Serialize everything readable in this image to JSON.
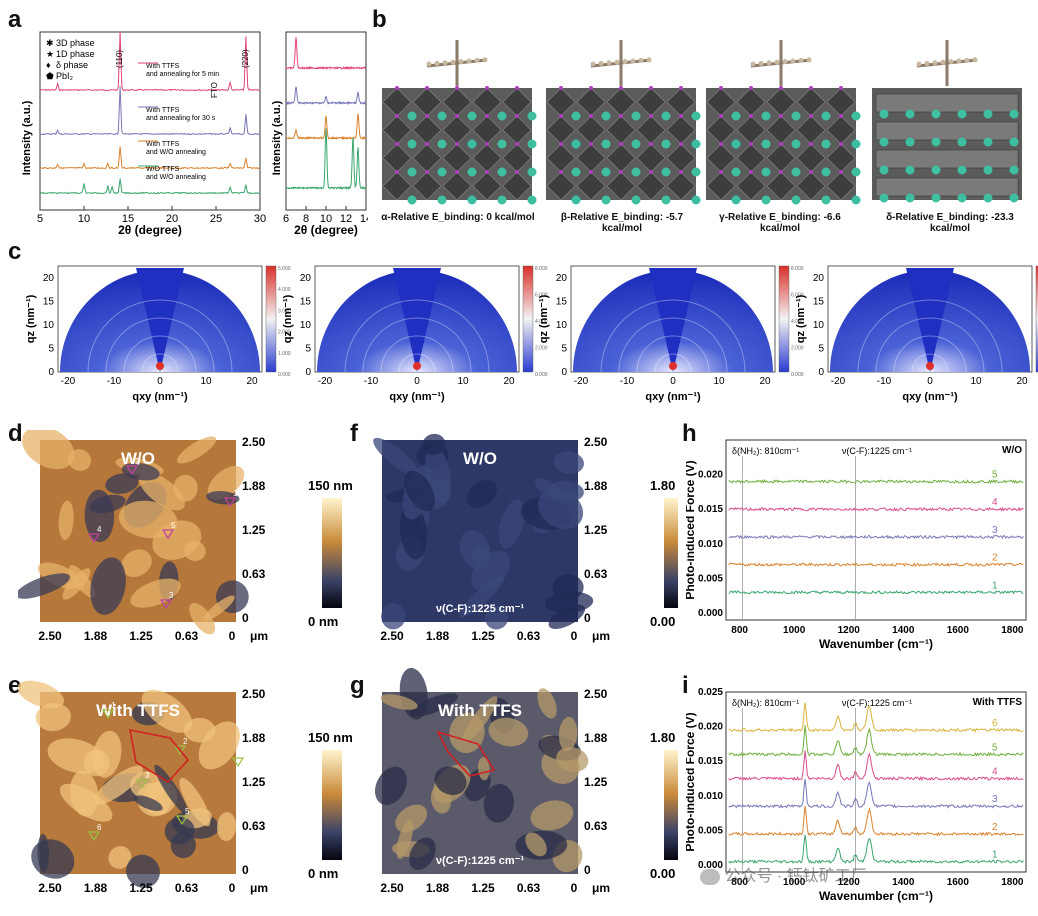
{
  "panels": {
    "a": "a",
    "b": "b",
    "c": "c",
    "d": "d",
    "e": "e",
    "f": "f",
    "g": "g",
    "h": "h",
    "i": "i"
  },
  "xrd": {
    "ylabel": "Intensity (a.u.)",
    "xlabel": "2θ (degree)",
    "legend": [
      "3D phase",
      "1D phase",
      "δ phase",
      "PbI₂"
    ],
    "legend_markers": [
      "✱",
      "★",
      "♦",
      "⬟"
    ],
    "peak_110": "(110)",
    "peak_220": "(220)",
    "fto": "FTO",
    "traces": [
      {
        "label": "With TTFS\nand annealing for 5 min",
        "color": "#e0457a"
      },
      {
        "label": "With TTFS\nand annealing for 30 s",
        "color": "#7777b8"
      },
      {
        "label": "With TTFS\nand W/O annealing",
        "color": "#d9822b"
      },
      {
        "label": "W/O TTFS\nand W/O annealing",
        "color": "#3aa66d"
      }
    ],
    "ticks_main": [
      "5",
      "10",
      "15",
      "20",
      "25",
      "30"
    ],
    "ticks_zoom": [
      "6",
      "8",
      "10",
      "12",
      "14"
    ]
  },
  "structures": {
    "captions": [
      "α-Relative E_binding: 0 kcal/mol",
      "β-Relative E_binding: -5.7 kcal/mol",
      "γ-Relative E_binding: -6.6 kcal/mol",
      "δ-Relative E_binding: -23.3 kcal/mol"
    ]
  },
  "giwaxs": {
    "xlabel": "qxy (nm⁻¹)",
    "ylabel": "qz (nm⁻¹)",
    "xticks": [
      "-20",
      "-10",
      "0",
      "10",
      "20"
    ],
    "yticks": [
      "0",
      "5",
      "10",
      "15",
      "20"
    ],
    "colorbar_labels": [
      "5.000",
      "4.000",
      "3.000",
      "2.000",
      "1.000",
      "0.000"
    ],
    "colorbar_labels_alt": [
      "8.000",
      "6.000",
      "4.000",
      "2.000",
      "0.000"
    ],
    "maps": [
      "1",
      "2",
      "3",
      "4"
    ]
  },
  "afm": {
    "d": {
      "title": "W/O",
      "cb_top": "150 nm",
      "cb_bottom": "0 nm"
    },
    "e": {
      "title": "With TTFS",
      "cb_top": "150 nm",
      "cb_bottom": "0 nm"
    },
    "f": {
      "title": "W/O",
      "cb_top": "1.80 mV",
      "cb_bottom": "0.00 mV",
      "note": "ν(C-F):1225 cm⁻¹"
    },
    "g": {
      "title": "With TTFS",
      "cb_top": "1.80 mV",
      "cb_bottom": "0.00 mV",
      "note": "ν(C-F):1225 cm⁻¹"
    },
    "yticks": [
      "2.50",
      "1.88",
      "1.25",
      "0.63",
      "0"
    ],
    "xticks": [
      "2.50",
      "1.88",
      "1.25",
      "0.63",
      "0"
    ],
    "unit": "μm",
    "markers_d": [
      "2",
      "1",
      "4",
      "5",
      "3"
    ],
    "markers_e": [
      "1",
      "2",
      "3",
      "4",
      "5",
      "6"
    ]
  },
  "ir": {
    "h": {
      "title": "W/O",
      "series": [
        "1",
        "2",
        "3",
        "4",
        "5"
      ],
      "yticks": [
        "0.000",
        "0.005",
        "0.010",
        "0.015",
        "0.020"
      ]
    },
    "i": {
      "title": "With TTFS",
      "series": [
        "1",
        "2",
        "3",
        "4",
        "5",
        "6"
      ],
      "yticks": [
        "0.000",
        "0.005",
        "0.010",
        "0.015",
        "0.020",
        "0.025"
      ]
    },
    "ylabel": "Photo-induced Force (V)",
    "xlabel": "Wavenumber (cm⁻¹)",
    "xticks": [
      "800",
      "1000",
      "1200",
      "1400",
      "1600",
      "1800"
    ],
    "ann_nh": "δ(NH₂): 810cm⁻¹",
    "ann_cf": "ν(C-F):1225 cm⁻¹"
  },
  "watermark": "公众号 · 钙钛矿工厂",
  "chart_data": [
    {
      "type": "line",
      "panel": "h",
      "xlabel": "Wavenumber (cm⁻¹)",
      "ylabel": "Photo-induced Force (V)",
      "xlim": [
        750,
        1850
      ],
      "ylim": [
        -0.001,
        0.025
      ],
      "series": [
        {
          "name": "1",
          "baseline": 0.003,
          "color": "#3aa66d"
        },
        {
          "name": "2",
          "baseline": 0.007,
          "color": "#d9822b"
        },
        {
          "name": "3",
          "baseline": 0.011,
          "color": "#7777b8"
        },
        {
          "name": "4",
          "baseline": 0.015,
          "color": "#d94a8c"
        },
        {
          "name": "5",
          "baseline": 0.019,
          "color": "#6fae3c"
        }
      ]
    },
    {
      "type": "line",
      "panel": "i",
      "xlabel": "Wavenumber (cm⁻¹)",
      "ylabel": "Photo-induced Force (V)",
      "xlim": [
        750,
        1850
      ],
      "ylim": [
        -0.001,
        0.025
      ],
      "peaks": [
        1040,
        1160,
        1225,
        1275
      ],
      "series": [
        {
          "name": "1",
          "baseline": 0.0005,
          "color": "#3aa66d"
        },
        {
          "name": "2",
          "baseline": 0.0045,
          "color": "#d9822b"
        },
        {
          "name": "3",
          "baseline": 0.0085,
          "color": "#7777b8"
        },
        {
          "name": "4",
          "baseline": 0.0125,
          "color": "#d94a8c"
        },
        {
          "name": "5",
          "baseline": 0.016,
          "color": "#6fae3c"
        },
        {
          "name": "6",
          "baseline": 0.0195,
          "color": "#d9b23a"
        }
      ]
    }
  ]
}
